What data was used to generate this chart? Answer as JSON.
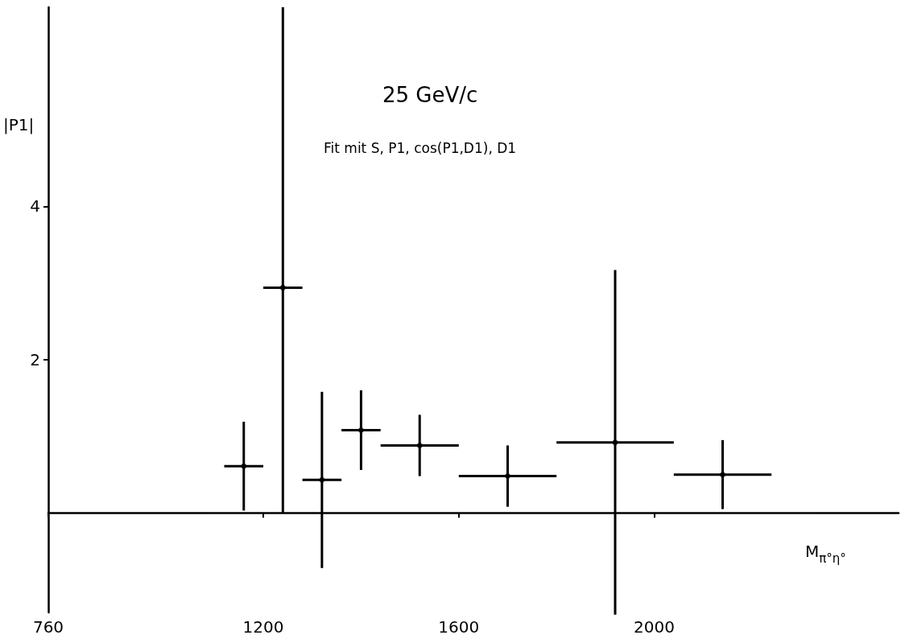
{
  "chart_data": {
    "type": "scatter",
    "title": "25 GeV/c",
    "subtitle": "Fit mit S, P1, cos(P1,D1), D1",
    "xlabel": "M$_{π°η°}$",
    "ylabel": "|P1|",
    "x": [
      1160,
      1240,
      1320,
      1400,
      1520,
      1700,
      1920,
      2140
    ],
    "values": [
      0.61,
      2.94,
      0.43,
      1.08,
      0.88,
      0.48,
      0.92,
      0.5
    ],
    "errors": [
      0.58,
      [
        0,
        6.6
      ],
      1.15,
      0.52,
      0.4,
      0.4,
      2.25,
      0.45
    ],
    "xerrors": [
      40,
      40,
      40,
      40,
      80,
      100,
      120,
      100
    ],
    "color": "#000000",
    "xlim": [
      760,
      2500
    ],
    "xticks": [
      760,
      1200,
      1600,
      2000
    ],
    "ylim": [
      -1.3,
      6.6
    ],
    "yticks": [
      2,
      4
    ],
    "grid": false
  }
}
